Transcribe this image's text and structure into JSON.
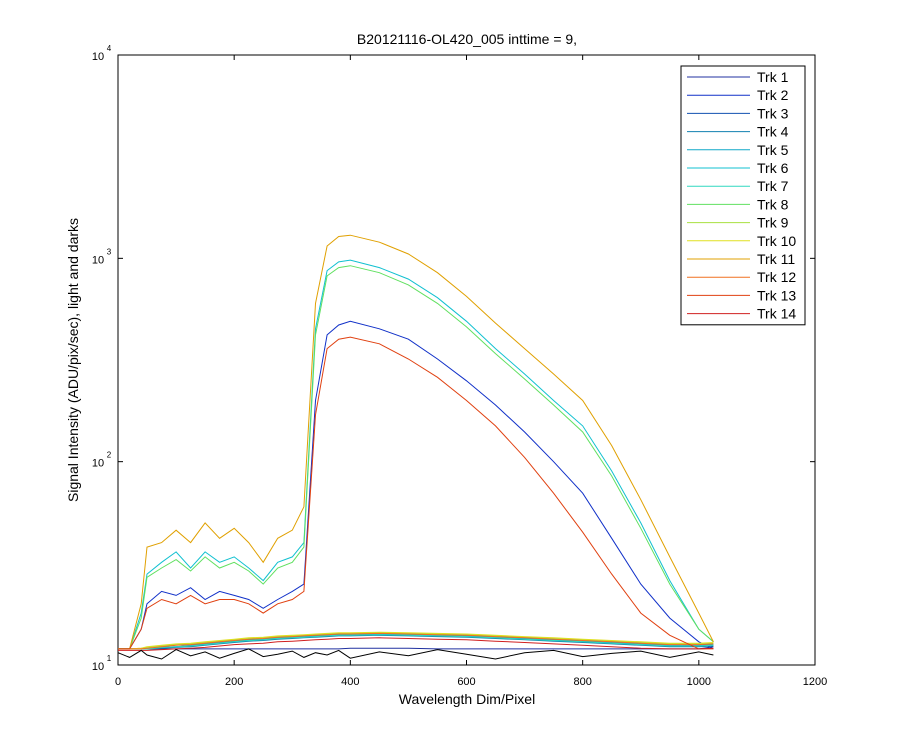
{
  "chart_data": {
    "type": "line",
    "title": "B20121116-OL420_005 inttime = 9,",
    "x_label": "Wavelength Dim/Pixel",
    "y_label": "Signal Intensity (ADU/pix/sec), light and darks",
    "log_y": true,
    "legend_position": "upper-right",
    "xlim": [
      0,
      1200
    ],
    "xticks": [
      0,
      200,
      400,
      600,
      800,
      1000,
      1200
    ],
    "ylim": [
      10,
      10000
    ],
    "yticks": [
      {
        "value": 10,
        "label": "10",
        "exponent": "1"
      },
      {
        "value": 100,
        "label": "10",
        "exponent": "2"
      },
      {
        "value": 1000,
        "label": "10",
        "exponent": "3"
      },
      {
        "value": 10000,
        "label": "10",
        "exponent": "4"
      }
    ],
    "x": [
      0,
      20,
      40,
      50,
      75,
      100,
      125,
      150,
      175,
      200,
      225,
      250,
      275,
      300,
      320,
      340,
      360,
      380,
      400,
      450,
      500,
      550,
      600,
      650,
      700,
      750,
      800,
      850,
      900,
      950,
      1000,
      1025
    ],
    "series": [
      {
        "name": "Trk 1",
        "color": "#2030a0",
        "values": [
          12,
          12,
          12,
          12,
          12,
          12,
          12,
          12,
          12,
          12,
          12,
          12,
          12,
          12,
          12,
          12,
          12,
          12,
          12.1,
          12.1,
          12.1,
          12,
          12,
          12,
          12,
          12,
          12,
          12,
          12,
          12,
          12,
          12.3
        ]
      },
      {
        "name": "Trk 2",
        "color": "#1030c8",
        "values": [
          12,
          12,
          15,
          20,
          23,
          22,
          24,
          21,
          23,
          22,
          21,
          19,
          21,
          23,
          25,
          200,
          420,
          470,
          490,
          450,
          400,
          320,
          250,
          190,
          140,
          100,
          70,
          42,
          25,
          17,
          13,
          12
        ]
      },
      {
        "name": "Trk 3",
        "color": "#1050b0",
        "values": [
          12,
          12,
          12,
          12,
          12.2,
          12.3,
          12.4,
          12.6,
          12.8,
          13,
          13.2,
          13.3,
          13.5,
          13.6,
          13.7,
          13.8,
          13.9,
          14,
          14,
          14.1,
          14,
          13.9,
          13.8,
          13.6,
          13.4,
          13.2,
          13,
          12.8,
          12.6,
          12.4,
          12.4,
          12.5
        ]
      },
      {
        "name": "Trk 4",
        "color": "#1080b0",
        "values": [
          12,
          12,
          12,
          12,
          12.1,
          12.2,
          12.3,
          12.5,
          12.7,
          12.9,
          13.1,
          13.2,
          13.4,
          13.5,
          13.6,
          13.7,
          13.8,
          13.9,
          13.9,
          14,
          13.9,
          13.8,
          13.7,
          13.5,
          13.3,
          13.1,
          12.9,
          12.7,
          12.5,
          12.3,
          12.3,
          12.4
        ]
      },
      {
        "name": "Trk 5",
        "color": "#10a8c8",
        "values": [
          12,
          12,
          12,
          12,
          12.2,
          12.3,
          12.5,
          12.7,
          12.9,
          13.1,
          13.3,
          13.4,
          13.6,
          13.7,
          13.8,
          13.9,
          14,
          14.1,
          14.1,
          14.2,
          14.1,
          14,
          13.9,
          13.7,
          13.5,
          13.3,
          13.1,
          12.9,
          12.7,
          12.5,
          12.5,
          12.6
        ]
      },
      {
        "name": "Trk 6",
        "color": "#10c0d0",
        "values": [
          12,
          12,
          18,
          28,
          32,
          36,
          30,
          36,
          32,
          34,
          30,
          26,
          32,
          34,
          40,
          450,
          870,
          960,
          980,
          900,
          790,
          640,
          490,
          360,
          270,
          200,
          150,
          90,
          50,
          26,
          15,
          13
        ]
      },
      {
        "name": "Trk 7",
        "color": "#30d8c0",
        "values": [
          12,
          12,
          12,
          12,
          12.2,
          12.3,
          12.4,
          12.6,
          12.8,
          13,
          13.2,
          13.3,
          13.5,
          13.6,
          13.7,
          13.8,
          13.9,
          14,
          14,
          14.1,
          14,
          13.9,
          13.8,
          13.6,
          13.4,
          13.2,
          13,
          12.8,
          12.6,
          12.4,
          12.4,
          12.5
        ]
      },
      {
        "name": "Trk 8",
        "color": "#60e060",
        "values": [
          12,
          12,
          17,
          27,
          30,
          33,
          29,
          34,
          30,
          32,
          29,
          25,
          30,
          32,
          38,
          420,
          820,
          900,
          920,
          850,
          740,
          600,
          460,
          340,
          255,
          190,
          140,
          85,
          47,
          25,
          15,
          13
        ]
      },
      {
        "name": "Trk 9",
        "color": "#a8e040",
        "values": [
          12,
          12,
          12.1,
          12.2,
          12.4,
          12.6,
          12.7,
          12.9,
          13.1,
          13.3,
          13.5,
          13.6,
          13.8,
          13.9,
          14,
          14.1,
          14.2,
          14.3,
          14.3,
          14.4,
          14.3,
          14.2,
          14.1,
          13.9,
          13.7,
          13.5,
          13.3,
          13.1,
          12.9,
          12.7,
          12.7,
          12.8
        ]
      },
      {
        "name": "Trk 10",
        "color": "#e0e020",
        "values": [
          12,
          12,
          12.1,
          12.3,
          12.5,
          12.7,
          12.8,
          13,
          13.2,
          13.4,
          13.6,
          13.7,
          13.9,
          14,
          14.1,
          14.2,
          14.3,
          14.4,
          14.4,
          14.5,
          14.4,
          14.3,
          14.2,
          14,
          13.8,
          13.6,
          13.4,
          13.2,
          13,
          12.8,
          12.8,
          12.9
        ]
      },
      {
        "name": "Trk 11",
        "color": "#e0a000",
        "values": [
          12,
          12,
          20,
          38,
          40,
          46,
          40,
          50,
          42,
          47,
          40,
          32,
          42,
          46,
          60,
          600,
          1150,
          1280,
          1300,
          1200,
          1050,
          850,
          650,
          480,
          360,
          270,
          200,
          120,
          65,
          34,
          18,
          13
        ]
      },
      {
        "name": "Trk 12",
        "color": "#f07020",
        "values": [
          12,
          12,
          12,
          12.1,
          12.3,
          12.5,
          12.6,
          12.8,
          13,
          13.2,
          13.4,
          13.5,
          13.7,
          13.8,
          13.9,
          14,
          14.1,
          14.2,
          14.2,
          14.3,
          14.2,
          14.1,
          14,
          13.8,
          13.6,
          13.4,
          13.2,
          13,
          12.8,
          12.6,
          12.6,
          12.7
        ]
      },
      {
        "name": "Trk 13",
        "color": "#e04010",
        "values": [
          12,
          12,
          15,
          19,
          21,
          20,
          22,
          20,
          21,
          21,
          20,
          18,
          20,
          21,
          23,
          170,
          360,
          400,
          410,
          380,
          320,
          260,
          200,
          150,
          105,
          70,
          45,
          28,
          18,
          14,
          12,
          12
        ]
      },
      {
        "name": "Trk 14",
        "color": "#d02020",
        "values": [
          11.8,
          11.8,
          11.8,
          11.8,
          11.9,
          12,
          12.1,
          12.2,
          12.4,
          12.6,
          12.7,
          12.8,
          13,
          13.1,
          13.2,
          13.3,
          13.4,
          13.5,
          13.5,
          13.6,
          13.5,
          13.4,
          13.3,
          13.1,
          12.9,
          12.7,
          12.5,
          12.3,
          12.1,
          12,
          12,
          12.1
        ]
      },
      {
        "color": "#000000",
        "values": [
          11.5,
          10.9,
          11.8,
          11.2,
          10.7,
          11.9,
          11.1,
          11.6,
          10.8,
          11.4,
          12,
          11,
          11.3,
          11.7,
          10.9,
          11.5,
          11.2,
          11.8,
          10.8,
          11.6,
          11.1,
          11.9,
          11.3,
          10.7,
          11.5,
          11.8,
          11,
          11.4,
          11.7,
          10.9,
          11.6,
          11.2
        ]
      }
    ]
  }
}
